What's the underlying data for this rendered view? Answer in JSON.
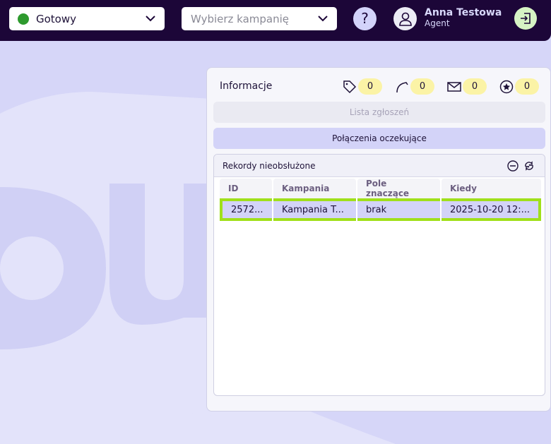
{
  "topbar": {
    "status": "Gotowy",
    "status_color": "#2e9a2e",
    "campaign_placeholder": "Wybierz kampanię",
    "help": "?",
    "user_name": "Anna Testowa",
    "user_role": "Agent"
  },
  "panel": {
    "title": "Informacje",
    "counters": [
      {
        "icon": "tag-icon",
        "value": "0"
      },
      {
        "icon": "phone-icon",
        "value": "0"
      },
      {
        "icon": "mail-icon",
        "value": "0"
      },
      {
        "icon": "star-icon",
        "value": "0"
      }
    ],
    "tickets_button": "Lista zgłoszeń",
    "pending_button": "Połączenia oczekujące",
    "records": {
      "title": "Rekordy nieobsłużone",
      "columns": [
        "ID",
        "Kampania",
        "Pole znaczące",
        "Kiedy"
      ],
      "rows": [
        [
          "2572...",
          "Kampania T...",
          "brak",
          "2025-10-20 12:..."
        ]
      ]
    }
  },
  "colors": {
    "topbar": "#1c0638",
    "highlight": "#a0e01a",
    "accent": "#d3d3f8"
  }
}
